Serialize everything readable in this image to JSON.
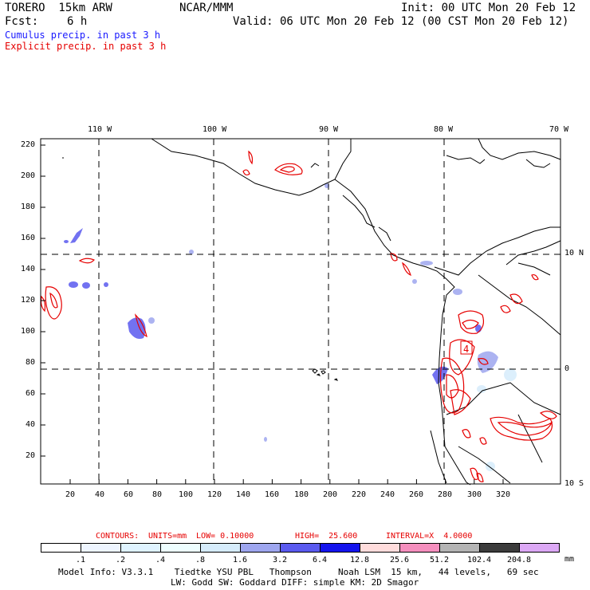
{
  "header": {
    "model_name": "TORERO  15km ARW",
    "org": "NCAR/MMM",
    "init": "Init: 00 UTC Mon 20 Feb 12",
    "fcst_label": "Fcst:",
    "fcst_value": "6 h",
    "valid": "Valid: 06 UTC Mon 20 Feb 12 (00 CST Mon 20 Feb 12)"
  },
  "legend": {
    "cumulus": "Cumulus precip. in past 3 h",
    "explicit": "Explicit precip. in past 3 h",
    "cumulus_color": "#1a1aff",
    "explicit_color": "#e60000"
  },
  "map": {
    "top_lon_labels": [
      "110 W",
      "100 W",
      "90 W",
      "80 W",
      "70 W"
    ],
    "right_lat_labels": [
      "10 N",
      "0",
      "10 S"
    ],
    "y_grid_ticks": [
      "220",
      "200",
      "180",
      "160",
      "140",
      "120",
      "100",
      "80",
      "60",
      "40",
      "20"
    ],
    "x_grid_ticks": [
      "20",
      "40",
      "60",
      "80",
      "100",
      "120",
      "140",
      "160",
      "180",
      "200",
      "220",
      "240",
      "260",
      "280",
      "300",
      "320"
    ],
    "contour_label": "4"
  },
  "contours_line": {
    "contours": "CONTOURS:",
    "units": "UNITS=mm",
    "low": "LOW= 0.10000",
    "high": "HIGH=  25.600",
    "interval": "INTERVAL=X  4.0000"
  },
  "colorbar": {
    "labels": [
      ".1",
      ".2",
      ".4",
      ".8",
      "1.6",
      "3.2",
      "6.4",
      "12.8",
      "25.6",
      "51.2",
      "102.4",
      "204.8"
    ],
    "unit": "mm",
    "colors": [
      "#ffffff",
      "#eef5ff",
      "#dff3ff",
      "#eefeff",
      "#d6ecfb",
      "#9ea6ef",
      "#5a5aef",
      "#1414ee",
      "#ffdcdc",
      "#f58fbe",
      "#b4b4b4",
      "#3c3c3c",
      "#dca8f5"
    ]
  },
  "footer": {
    "line1": "Model Info: V3.3.1    Tiedtke YSU PBL   Thompson     Noah LSM  15 km,   44 levels,   69 sec",
    "line2": "LW: Godd SW: Goddard DIFF: simple KM: 2D Smagor"
  }
}
